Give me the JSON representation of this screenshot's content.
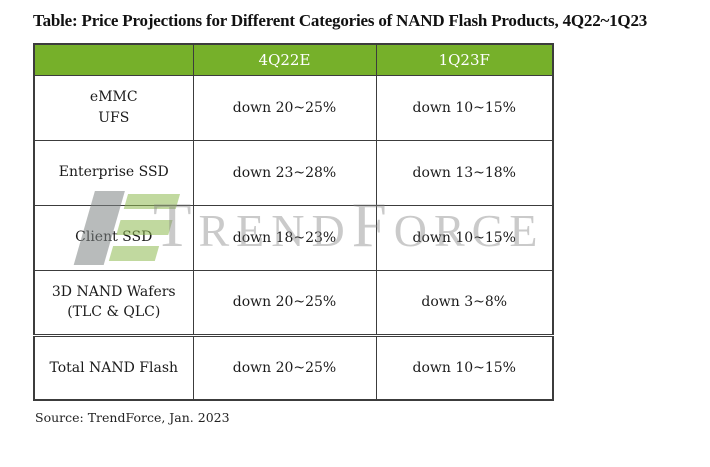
{
  "title": "Table: Price Projections for Different Categories of NAND Flash Products, 4Q22~1Q23",
  "source": "Source: TrendForce, Jan. 2023",
  "table": {
    "headers": [
      "",
      "4Q22E",
      "1Q23F"
    ],
    "rows": [
      {
        "l1": "eMMC",
        "l2": "UFS",
        "v1": "down 20~25%",
        "v2": "down 10~15%"
      },
      {
        "l1": "Enterprise SSD",
        "l2": "",
        "v1": "down 23~28%",
        "v2": "down 13~18%"
      },
      {
        "l1": "Client SSD",
        "l2": "",
        "v1": "down 18~23%",
        "v2": "down 10~15%"
      },
      {
        "l1": "3D NAND Wafers",
        "l2": "(TLC & QLC)",
        "v1": "down 20~25%",
        "v2": "down 3~8%"
      },
      {
        "l1": "Total NAND Flash",
        "l2": "",
        "v1": "down 20~25%",
        "v2": "down 10~15%"
      }
    ]
  },
  "watermark": {
    "brand": "TrendForce",
    "p1": "T",
    "p2": "REND",
    "p3": "F",
    "p4": "ORCE"
  },
  "colors": {
    "header_green": "#76B02A",
    "header_text": "#FFFFFF",
    "border": "#3C3C3C",
    "body_text": "#1B1B1B",
    "watermark_text": "#C6C6C6",
    "logo_gray": "#9EA3A3",
    "logo_green": "#A5C97B"
  },
  "chart_data": {
    "type": "table",
    "title": "Table: Price Projections for Different Categories of NAND Flash Products, 4Q22~1Q23",
    "columns": [
      "",
      "4Q22E",
      "1Q23F"
    ],
    "rows": [
      [
        "eMMC\nUFS",
        "down 20~25%",
        "down 10~15%"
      ],
      [
        "Enterprise SSD",
        "down 23~28%",
        "down 13~18%"
      ],
      [
        "Client SSD",
        "down 18~23%",
        "down 10~15%"
      ],
      [
        "3D NAND Wafers\n(TLC & QLC)",
        "down 20~25%",
        "down 3~8%"
      ],
      [
        "Total NAND Flash",
        "down 20~25%",
        "down 10~15%"
      ]
    ],
    "source": "Source: TrendForce, Jan. 2023",
    "header_style": {
      "background": "#76B02A",
      "color": "#FFFFFF"
    }
  }
}
